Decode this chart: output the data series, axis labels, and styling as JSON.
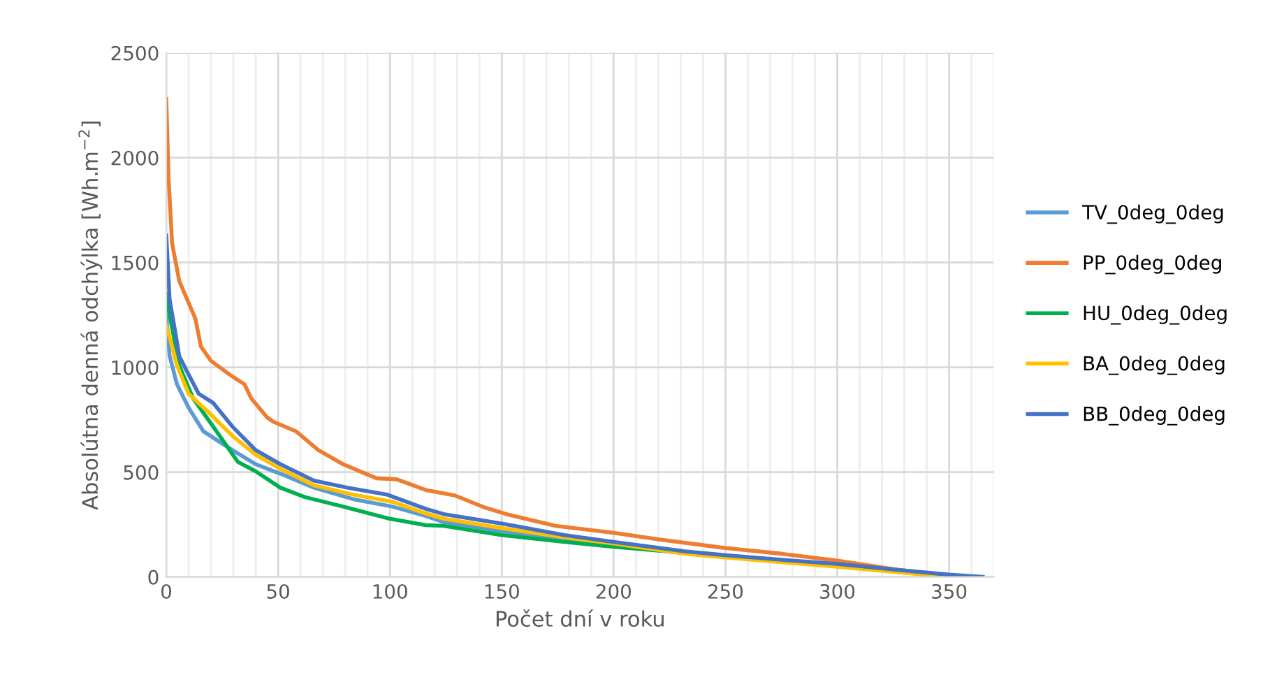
{
  "chart_data": {
    "type": "line",
    "xlabel": "Počet dní v roku",
    "ylabel": "Absolútna denná odchýlka [Wh.m$^{−2}$]",
    "xlim": [
      0,
      370
    ],
    "ylim": [
      0,
      2500
    ],
    "xticks": [
      0,
      {
        "value": 10,
        "label": null
      },
      {
        "value": 20,
        "label": null
      },
      {
        "value": 30,
        "label": null
      },
      {
        "value": 40,
        "label": null
      },
      50,
      {
        "value": 60,
        "label": null
      },
      {
        "value": 70,
        "label": null
      },
      {
        "value": 80,
        "label": null
      },
      {
        "value": 90,
        "label": null
      },
      100,
      {
        "value": 110,
        "label": null
      },
      {
        "value": 120,
        "label": null
      },
      {
        "value": 130,
        "label": null
      },
      {
        "value": 140,
        "label": null
      },
      150,
      {
        "value": 160,
        "label": null
      },
      {
        "value": 170,
        "label": null
      },
      {
        "value": 180,
        "label": null
      },
      {
        "value": 190,
        "label": null
      },
      200,
      {
        "value": 210,
        "label": null
      },
      {
        "value": 220,
        "label": null
      },
      {
        "value": 230,
        "label": null
      },
      {
        "value": 240,
        "label": null
      },
      250,
      {
        "value": 260,
        "label": null
      },
      {
        "value": 270,
        "label": null
      },
      {
        "value": 280,
        "label": null
      },
      {
        "value": 290,
        "label": null
      },
      300,
      {
        "value": 310,
        "label": null
      },
      {
        "value": 320,
        "label": null
      },
      {
        "value": 330,
        "label": null
      },
      {
        "value": 340,
        "label": null
      },
      350,
      {
        "value": 360,
        "label": null
      },
      {
        "value": 370,
        "label": null
      }
    ],
    "yticks": [
      0,
      500,
      1000,
      1500,
      2000,
      2500
    ],
    "grid": true,
    "legend": "right",
    "marker": "none",
    "line_style": "solid",
    "series": [
      {
        "name": "TV_0deg_0deg",
        "color": "#5b9bd5",
        "x": [
          0,
          1.5,
          4.8,
          10,
          16.6,
          23,
          29.6,
          40,
          51,
          66,
          84,
          101,
          116,
          124,
          150,
          178,
          200,
          232,
          250,
          275,
          300,
          328,
          350,
          358
        ],
        "values": [
          1250,
          1054,
          919,
          807,
          695,
          650,
          605,
          538,
          493,
          426,
          370,
          336,
          291,
          262,
          218,
          178,
          152,
          113,
          97,
          76,
          52,
          24,
          4,
          0
        ]
      },
      {
        "name": "PP_0deg_0deg",
        "color": "#ed7d31",
        "x": [
          0,
          1,
          2.6,
          5.8,
          13,
          15.5,
          20,
          28.5,
          35,
          38,
          45,
          48,
          58,
          68,
          79,
          94,
          103,
          116,
          129,
          142,
          152,
          174,
          200,
          221,
          250,
          275,
          300,
          328,
          350,
          365
        ],
        "values": [
          2280,
          1906,
          1592,
          1412,
          1233,
          1099,
          1031,
          964,
          919,
          852,
          762,
          740,
          695,
          605,
          538,
          471,
          466,
          415,
          389,
          333,
          300,
          244,
          211,
          178,
          138,
          111,
          78,
          33,
          7,
          0
        ]
      },
      {
        "name": "HU_0deg_0deg",
        "color": "#00b050",
        "x": [
          0,
          0.6,
          2.6,
          5.8,
          12,
          21,
          32,
          40,
          51,
          62,
          79,
          99,
          116,
          124,
          150,
          178,
          200,
          232,
          250
        ],
        "values": [
          1350,
          1300,
          1188,
          1009,
          852,
          717,
          549,
          504,
          426,
          381,
          336,
          280,
          247,
          244,
          200,
          167,
          144,
          115,
          100
        ]
      },
      {
        "name": "BA_0deg_0deg",
        "color": "#ffc000",
        "x": [
          0,
          1.5,
          4.8,
          10,
          19,
          29.6,
          40,
          51,
          66,
          84,
          101,
          116,
          124,
          150,
          178,
          200,
          232,
          250,
          275,
          300,
          328,
          350
        ],
        "values": [
          1200,
          1143,
          1009,
          874,
          785,
          673,
          583,
          516,
          437,
          392,
          359,
          303,
          278,
          233,
          189,
          160,
          111,
          93,
          71,
          49,
          22,
          0
        ]
      },
      {
        "name": "BB_0deg_0deg",
        "color": "#4472c4",
        "x": [
          0,
          1.5,
          3.7,
          5.8,
          9,
          14.5,
          21,
          29.6,
          40,
          51,
          66,
          81,
          99,
          116,
          124,
          150,
          178,
          200,
          232,
          250,
          275,
          300,
          328,
          350,
          365
        ],
        "values": [
          1630,
          1323,
          1188,
          1054,
          986,
          874,
          830,
          717,
          605,
          538,
          460,
          426,
          392,
          325,
          300,
          255,
          200,
          167,
          122,
          104,
          82,
          62,
          33,
          11,
          0
        ]
      }
    ]
  }
}
